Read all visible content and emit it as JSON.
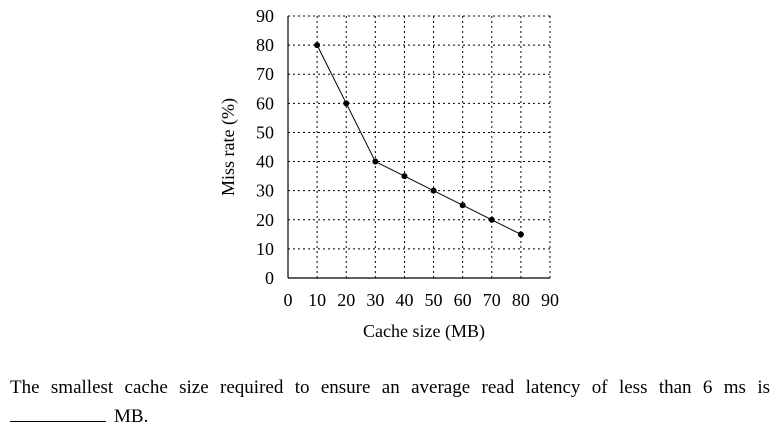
{
  "chart_data": {
    "type": "line",
    "xlabel": "Cache size (MB)",
    "ylabel": "Miss rate (%)",
    "xlim": [
      0,
      90
    ],
    "ylim": [
      0,
      90
    ],
    "x_ticks": [
      0,
      10,
      20,
      30,
      40,
      50,
      60,
      70,
      80,
      90
    ],
    "y_ticks": [
      0,
      10,
      20,
      30,
      40,
      50,
      60,
      70,
      80,
      90
    ],
    "grid": true,
    "series": [
      {
        "x": [
          10,
          20,
          30,
          40,
          50,
          60,
          70,
          80
        ],
        "y": [
          80,
          60,
          40,
          35,
          30,
          25,
          20,
          15
        ]
      }
    ]
  },
  "question": {
    "text": "The smallest cache size required to ensure an average read latency of less than 6 ms is",
    "unit": "MB."
  },
  "colors": {
    "line": "#000000",
    "grid": "#000000"
  }
}
